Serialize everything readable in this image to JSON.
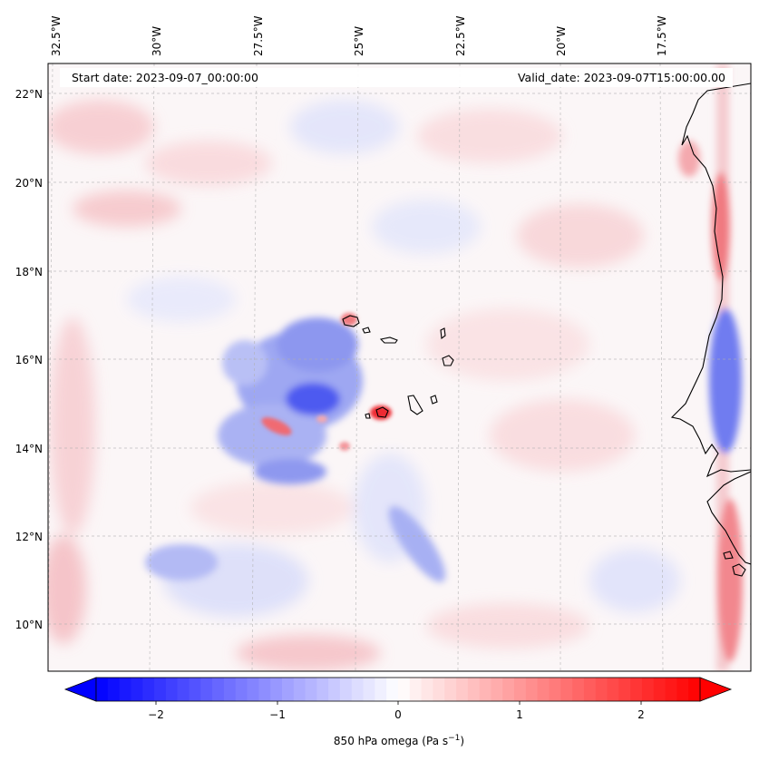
{
  "map": {
    "annotations": {
      "start_date": "Start date: 2023-09-07_00:00:00",
      "valid_date": "Valid_date: 2023-09-07T15:00:00.00"
    },
    "longitude_labels": [
      "32.5°W",
      "30°W",
      "27.5°W",
      "25°W",
      "22.5°W",
      "20°W",
      "17.5°W"
    ],
    "latitude_labels": [
      "22°N",
      "20°N",
      "18°N",
      "16°N",
      "14°N",
      "12°N",
      "10°N"
    ],
    "colorbar": {
      "ticks": [
        "−2",
        "−1",
        "0",
        "1",
        "2"
      ],
      "label_main": "850 hPa omega (Pa s",
      "label_sup": "−1",
      "label_close": ")",
      "range": [
        -2.6,
        2.6
      ],
      "cmap": "bwr",
      "color_low": "#0000ff",
      "color_mid": "#ffffff",
      "color_high": "#ff0000"
    },
    "colors": {
      "gridline": "#b0b0b0",
      "coastline": "#000000",
      "frame": "#000000"
    }
  }
}
